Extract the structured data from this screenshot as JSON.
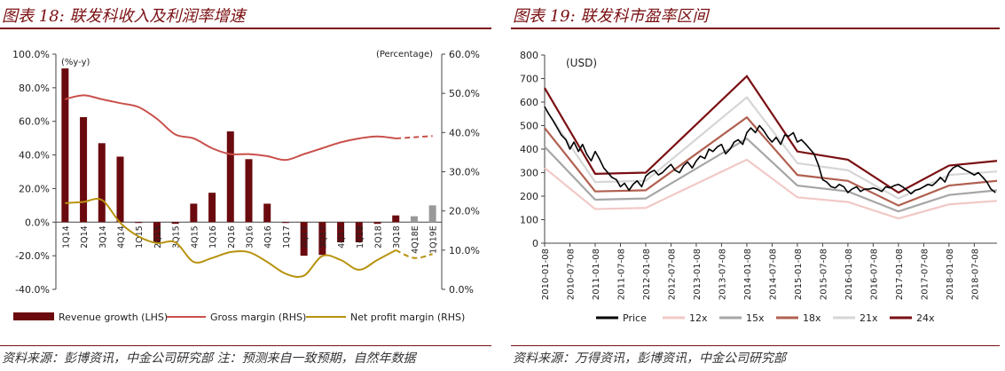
{
  "panel1": {
    "title": "图表 18:  联发科收入及利润率增速",
    "source": "资料来源：彭博资讯，中金公司研究部   注：预测来自一致预期，自然年数据"
  },
  "panel2": {
    "title": "图表 19:  联发科市盈率区间",
    "source": "资料来源：万得资讯，彭博资讯，中金公司研究部"
  },
  "colors": {
    "revenue": "#6b0a0e",
    "estimate_bar": "#999999",
    "gross": "#c9504b",
    "net": "#b8920f",
    "price": "#000000",
    "pe12": "#f1c9c6",
    "pe15": "#a6a6a6",
    "pe18": "#b06050",
    "pe21": "#d6d6d6",
    "pe24": "#7a0f12"
  },
  "chart_data": [
    {
      "type": "bar",
      "left_unit_note": "(%y-y)",
      "right_unit_note": "(Percentage)",
      "categories": [
        "1Q14",
        "2Q14",
        "3Q14",
        "4Q14",
        "1Q15",
        "2Q15",
        "3Q15",
        "4Q15",
        "1Q16",
        "2Q16",
        "3Q16",
        "4Q16",
        "1Q17",
        "2Q17",
        "3Q17",
        "4Q17",
        "1Q18",
        "2Q18",
        "3Q18",
        "4Q18E",
        "1Q19E"
      ],
      "estimate_from_index": 19,
      "left_axis": {
        "min": -40,
        "max": 100,
        "ticks": [
          "-40.0%",
          "-20.0%",
          "0.0%",
          "20.0%",
          "40.0%",
          "60.0%",
          "80.0%",
          "100.0%"
        ]
      },
      "right_axis": {
        "min": 0,
        "max": 60,
        "ticks": [
          "0.0%",
          "10.0%",
          "20.0%",
          "30.0%",
          "40.0%",
          "50.0%",
          "60.0%"
        ]
      },
      "series": [
        {
          "name": "Revenue growth (LHS)",
          "kind": "bar",
          "axis": "left",
          "values": [
            91.5,
            62.5,
            47,
            39,
            -0.5,
            -12,
            -1,
            11,
            17.5,
            54,
            37.5,
            11,
            -0.5,
            -20,
            -19.5,
            -12,
            -12,
            -1,
            4,
            3.5,
            10
          ]
        },
        {
          "name": "Gross margin (RHS)",
          "kind": "line",
          "axis": "right",
          "values": [
            48.5,
            49.5,
            48.5,
            47.5,
            46.5,
            43.5,
            39.5,
            38.5,
            36,
            34.5,
            34.5,
            34,
            33,
            34.5,
            36,
            37.5,
            38.5,
            39,
            38.5,
            38.8,
            39.1
          ]
        },
        {
          "name": "Net profit margin (RHS)",
          "kind": "line",
          "axis": "right",
          "values": [
            22,
            22.3,
            22.8,
            17,
            13.5,
            11.8,
            12,
            7,
            8,
            9.5,
            9.5,
            7,
            4,
            3.5,
            8.5,
            7.5,
            5,
            7.5,
            10,
            8,
            9
          ]
        }
      ]
    },
    {
      "type": "line",
      "unit_note": "(USD)",
      "y_axis": {
        "min": 0,
        "max": 800,
        "ticks": [
          "0",
          "100",
          "200",
          "300",
          "400",
          "500",
          "600",
          "700",
          "800"
        ]
      },
      "x_labels": [
        "2010-01-08",
        "2010-07-08",
        "2011-01-08",
        "2011-07-08",
        "2012-01-08",
        "2012-07-08",
        "2013-01-08",
        "2013-07-08",
        "2014-01-08",
        "2014-07-08",
        "2015-01-08",
        "2015-07-08",
        "2016-01-08",
        "2016-07-08",
        "2017-01-08",
        "2017-07-08",
        "2018-01-08",
        "2018-07-08"
      ],
      "x_range": [
        2010.0,
        2018.95
      ],
      "band_x": [
        2010.0,
        2011.0,
        2012.0,
        2014.0,
        2015.0,
        2016.0,
        2017.0,
        2018.0,
        2018.95
      ],
      "series": [
        {
          "name": "Price",
          "key": "price",
          "x": [
            2010.0,
            2010.08,
            2010.17,
            2010.25,
            2010.33,
            2010.42,
            2010.5,
            2010.58,
            2010.67,
            2010.75,
            2010.83,
            2010.92,
            2011.0,
            2011.08,
            2011.17,
            2011.25,
            2011.33,
            2011.42,
            2011.5,
            2011.58,
            2011.67,
            2011.75,
            2011.83,
            2011.92,
            2012.0,
            2012.08,
            2012.17,
            2012.25,
            2012.33,
            2012.42,
            2012.5,
            2012.58,
            2012.67,
            2012.75,
            2012.83,
            2012.92,
            2013.0,
            2013.08,
            2013.17,
            2013.25,
            2013.33,
            2013.42,
            2013.5,
            2013.58,
            2013.67,
            2013.75,
            2013.83,
            2013.92,
            2014.0,
            2014.08,
            2014.17,
            2014.25,
            2014.33,
            2014.42,
            2014.5,
            2014.58,
            2014.67,
            2014.75,
            2014.83,
            2014.92,
            2015.0,
            2015.08,
            2015.17,
            2015.25,
            2015.33,
            2015.42,
            2015.5,
            2015.58,
            2015.67,
            2015.75,
            2015.83,
            2015.92,
            2016.0,
            2016.08,
            2016.17,
            2016.25,
            2016.33,
            2016.42,
            2016.5,
            2016.58,
            2016.67,
            2016.75,
            2016.83,
            2016.92,
            2017.0,
            2017.08,
            2017.17,
            2017.25,
            2017.33,
            2017.42,
            2017.5,
            2017.58,
            2017.67,
            2017.75,
            2017.83,
            2017.92,
            2018.0,
            2018.08,
            2018.17,
            2018.25,
            2018.33,
            2018.42,
            2018.5,
            2018.58,
            2018.67,
            2018.75,
            2018.83,
            2018.92
          ],
          "y": [
            580,
            550,
            520,
            490,
            460,
            440,
            400,
            430,
            390,
            420,
            380,
            350,
            390,
            360,
            320,
            300,
            280,
            270,
            240,
            255,
            225,
            250,
            265,
            240,
            285,
            300,
            310,
            290,
            300,
            320,
            335,
            310,
            300,
            330,
            345,
            320,
            350,
            370,
            360,
            400,
            390,
            410,
            420,
            380,
            400,
            430,
            440,
            420,
            470,
            490,
            470,
            500,
            480,
            450,
            430,
            450,
            420,
            460,
            455,
            470,
            430,
            440,
            420,
            400,
            380,
            330,
            270,
            260,
            240,
            235,
            250,
            240,
            215,
            230,
            240,
            220,
            230,
            230,
            235,
            230,
            220,
            240,
            235,
            245,
            250,
            240,
            225,
            210,
            225,
            230,
            240,
            250,
            245,
            260,
            280,
            260,
            300,
            320,
            330,
            320,
            310,
            300,
            290,
            300,
            280,
            260,
            230,
            215
          ]
        },
        {
          "name": "12x",
          "key": "pe12",
          "y": [
            320,
            145,
            150,
            355,
            195,
            175,
            105,
            165,
            180
          ]
        },
        {
          "name": "15x",
          "key": "pe15",
          "y": [
            410,
            185,
            190,
            445,
            245,
            220,
            135,
            205,
            225
          ]
        },
        {
          "name": "18x",
          "key": "pe18",
          "y": [
            490,
            220,
            225,
            535,
            290,
            265,
            160,
            245,
            265
          ]
        },
        {
          "name": "21x",
          "key": "pe21",
          "y": [
            575,
            260,
            265,
            620,
            340,
            310,
            190,
            290,
            305
          ]
        },
        {
          "name": "24x",
          "key": "pe24",
          "y": [
            660,
            295,
            300,
            710,
            390,
            355,
            215,
            330,
            350
          ]
        }
      ]
    }
  ]
}
